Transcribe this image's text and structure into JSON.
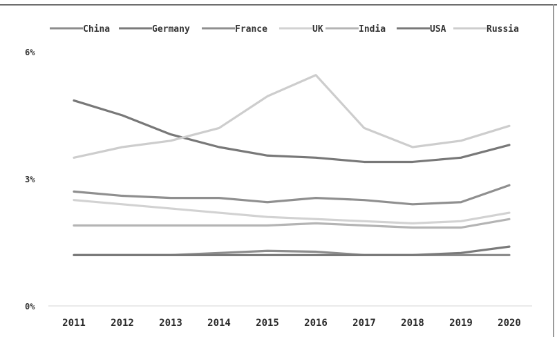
{
  "chart_data": {
    "type": "line",
    "title": "",
    "xlabel": "",
    "ylabel": "",
    "x": [
      "2011",
      "2012",
      "2013",
      "2014",
      "2015",
      "2016",
      "2017",
      "2018",
      "2019",
      "2020"
    ],
    "ylim": [
      0,
      6
    ],
    "yticks": [
      {
        "value": 0,
        "label": "0%"
      },
      {
        "value": 3,
        "label": "3%"
      },
      {
        "value": 6,
        "label": "6%"
      }
    ],
    "legend_position": "top",
    "grid": false,
    "series": [
      {
        "name": "China",
        "color": "#8c8c8c",
        "values": [
          1.2,
          1.2,
          1.2,
          1.25,
          1.3,
          1.28,
          1.2,
          1.2,
          1.2,
          1.2
        ]
      },
      {
        "name": "Germany",
        "color": "#7a7a7a",
        "values": [
          1.2,
          1.2,
          1.2,
          1.2,
          1.2,
          1.2,
          1.2,
          1.2,
          1.25,
          1.4
        ]
      },
      {
        "name": "France",
        "color": "#8f8f8f",
        "values": [
          2.7,
          2.6,
          2.55,
          2.55,
          2.45,
          2.55,
          2.5,
          2.4,
          2.45,
          2.85
        ]
      },
      {
        "name": "UK",
        "color": "#d2d2d2",
        "values": [
          2.5,
          2.4,
          2.3,
          2.2,
          2.1,
          2.05,
          2.0,
          1.95,
          2.0,
          2.2
        ]
      },
      {
        "name": "India",
        "color": "#b4b4b4",
        "values": [
          1.9,
          1.9,
          1.9,
          1.9,
          1.9,
          1.95,
          1.9,
          1.85,
          1.85,
          2.05
        ]
      },
      {
        "name": "USA",
        "color": "#787878",
        "values": [
          4.85,
          4.5,
          4.05,
          3.75,
          3.55,
          3.5,
          3.4,
          3.4,
          3.5,
          3.8
        ]
      },
      {
        "name": "Russia",
        "color": "#cdcdcd",
        "values": [
          3.5,
          3.75,
          3.9,
          4.2,
          4.95,
          5.45,
          4.2,
          3.75,
          3.9,
          4.25
        ]
      }
    ]
  }
}
